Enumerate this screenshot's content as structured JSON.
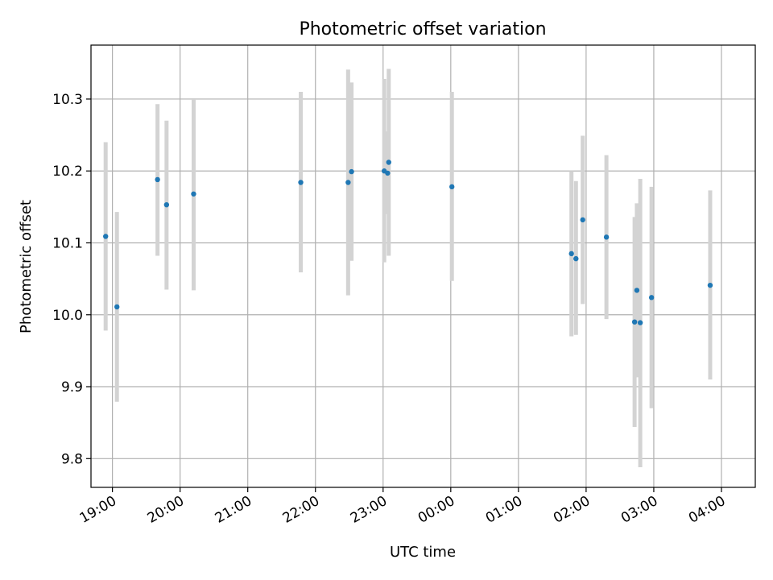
{
  "chart_data": {
    "type": "scatter",
    "title": "Photometric offset variation",
    "xlabel": "UTC time",
    "ylabel": "Photometric offset",
    "grid": true,
    "x_is_time": true,
    "x_ticks": [
      "19:00",
      "20:00",
      "21:00",
      "22:00",
      "23:00",
      "00:00",
      "01:00",
      "02:00",
      "03:00",
      "04:00"
    ],
    "y_ticks": [
      "9.8",
      "9.9",
      "10.0",
      "10.1",
      "10.2",
      "10.3"
    ],
    "xlim": [
      "18:41",
      "04:30"
    ],
    "ylim": [
      9.76,
      10.375
    ],
    "colors": {
      "point": "#1f77b4",
      "errorbar": "#d3d3d3",
      "grid": "#b0b0b0"
    },
    "series": [
      {
        "points": [
          {
            "x": "18:54",
            "y": 10.109,
            "yerr_low": 9.978,
            "yerr_high": 10.24
          },
          {
            "x": "19:04",
            "y": 10.011,
            "yerr_low": 9.879,
            "yerr_high": 10.143
          },
          {
            "x": "19:40",
            "y": 10.188,
            "yerr_low": 10.082,
            "yerr_high": 10.293
          },
          {
            "x": "19:48",
            "y": 10.153,
            "yerr_low": 10.035,
            "yerr_high": 10.27
          },
          {
            "x": "20:12",
            "y": 10.168,
            "yerr_low": 10.034,
            "yerr_high": 10.299
          },
          {
            "x": "21:47",
            "y": 10.184,
            "yerr_low": 10.059,
            "yerr_high": 10.31
          },
          {
            "x": "22:29",
            "y": 10.184,
            "yerr_low": 10.027,
            "yerr_high": 10.341
          },
          {
            "x": "22:32",
            "y": 10.199,
            "yerr_low": 10.075,
            "yerr_high": 10.323
          },
          {
            "x": "23:01",
            "y": 10.2,
            "yerr_low": 10.073,
            "yerr_high": 10.328
          },
          {
            "x": "23:05",
            "y": 10.212,
            "yerr_low": 10.082,
            "yerr_high": 10.342
          },
          {
            "x": "23:04",
            "y": 10.197,
            "yerr_low": 10.14,
            "yerr_high": 10.255
          },
          {
            "x": "00:01",
            "y": 10.178,
            "yerr_low": 10.047,
            "yerr_high": 10.31
          },
          {
            "x": "01:47",
            "y": 10.085,
            "yerr_low": 9.97,
            "yerr_high": 10.2
          },
          {
            "x": "01:51",
            "y": 10.078,
            "yerr_low": 9.972,
            "yerr_high": 10.186
          },
          {
            "x": "01:57",
            "y": 10.132,
            "yerr_low": 10.015,
            "yerr_high": 10.249
          },
          {
            "x": "02:18",
            "y": 10.108,
            "yerr_low": 9.994,
            "yerr_high": 10.222
          },
          {
            "x": "02:43",
            "y": 9.99,
            "yerr_low": 9.844,
            "yerr_high": 10.136
          },
          {
            "x": "02:45",
            "y": 10.034,
            "yerr_low": 9.913,
            "yerr_high": 10.155
          },
          {
            "x": "02:48",
            "y": 9.989,
            "yerr_low": 9.788,
            "yerr_high": 10.189
          },
          {
            "x": "02:58",
            "y": 10.024,
            "yerr_low": 9.87,
            "yerr_high": 10.178
          },
          {
            "x": "03:50",
            "y": 10.041,
            "yerr_low": 9.91,
            "yerr_high": 10.173
          }
        ]
      }
    ]
  }
}
